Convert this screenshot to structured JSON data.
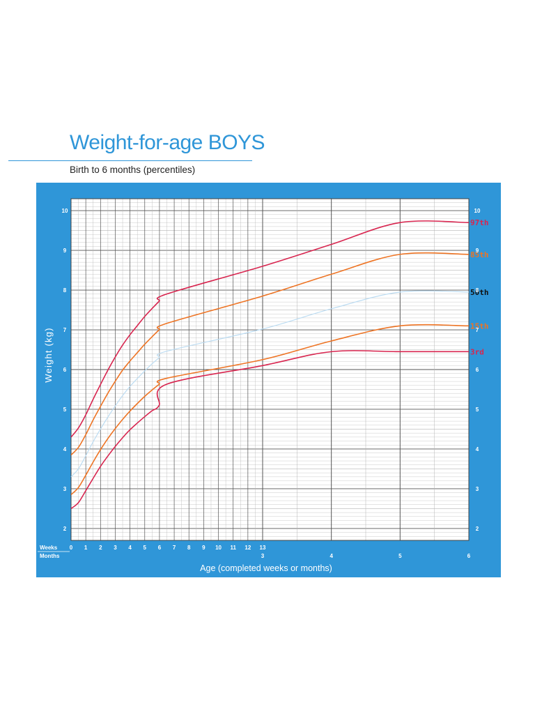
{
  "header": {
    "title": "Weight-for-age BOYS",
    "subtitle": "Birth to 6 months (percentiles)"
  },
  "colors": {
    "title": "#2f96d8",
    "panel": "#2f96d8",
    "red": "#d8254f",
    "orange": "#ee7424",
    "median": "#bcdcf2",
    "grid_major": "#555555",
    "grid_minor": "#b5b5b5"
  },
  "chart_data": {
    "type": "line",
    "title": "Weight-for-age BOYS",
    "subtitle": "Birth to 6 months (percentiles)",
    "xlabel": "Age (completed weeks or months)",
    "ylabel": "Weight (kg)",
    "x_unit": "months",
    "xlim": [
      0,
      6
    ],
    "ylim": [
      1.7,
      10.3
    ],
    "week_row_label": "Weeks",
    "month_row_label": "Months",
    "week_ticks": [
      "0",
      "1",
      "2",
      "3",
      "4",
      "5",
      "6",
      "7",
      "8",
      "9",
      "10",
      "11",
      "12",
      "13"
    ],
    "month_ticks": [
      "3",
      "4",
      "5",
      "6"
    ],
    "y_ticks": [
      "2",
      "3",
      "4",
      "5",
      "6",
      "7",
      "8",
      "9",
      "10"
    ],
    "grid": true,
    "series": [
      {
        "name": "97th",
        "color": "red",
        "x": [
          0,
          0.115,
          0.23,
          0.345,
          0.46,
          0.575,
          0.69,
          0.805,
          0.92,
          1.035,
          1.15,
          1.265,
          1.38,
          1.495,
          3,
          4,
          5,
          6
        ],
        "y": [
          4.3,
          4.53,
          4.86,
          5.25,
          5.62,
          5.98,
          6.31,
          6.61,
          6.87,
          7.1,
          7.33,
          7.53,
          7.72,
          7.9,
          8.6,
          9.15,
          9.7,
          9.7
        ]
      },
      {
        "name": "85th",
        "color": "orange",
        "x": [
          0,
          0.115,
          0.23,
          0.345,
          0.46,
          0.575,
          0.69,
          0.805,
          0.92,
          1.035,
          1.15,
          1.265,
          1.38,
          1.495,
          3,
          4,
          5,
          6
        ],
        "y": [
          3.85,
          4.04,
          4.36,
          4.73,
          5.07,
          5.4,
          5.7,
          5.98,
          6.21,
          6.42,
          6.63,
          6.82,
          7.0,
          7.16,
          7.85,
          8.4,
          8.9,
          8.9
        ]
      },
      {
        "name": "50th",
        "color": "median",
        "x": [
          0,
          0.115,
          0.23,
          0.345,
          0.46,
          0.575,
          0.69,
          0.805,
          0.92,
          1.035,
          1.15,
          1.265,
          1.38,
          1.495,
          3,
          4,
          5,
          6
        ],
        "y": [
          3.3,
          3.5,
          3.83,
          4.18,
          4.5,
          4.8,
          5.08,
          5.34,
          5.57,
          5.77,
          5.96,
          6.14,
          6.3,
          6.46,
          7.02,
          7.53,
          7.95,
          7.95
        ]
      },
      {
        "name": "15th",
        "color": "orange",
        "x": [
          0,
          0.115,
          0.23,
          0.345,
          0.46,
          0.575,
          0.69,
          0.805,
          0.92,
          1.035,
          1.15,
          1.265,
          1.38,
          1.495,
          3,
          4,
          5,
          6
        ],
        "y": [
          2.85,
          3.03,
          3.34,
          3.67,
          3.98,
          4.26,
          4.51,
          4.74,
          4.95,
          5.14,
          5.32,
          5.48,
          5.63,
          5.78,
          6.25,
          6.72,
          7.1,
          7.1
        ]
      },
      {
        "name": "3rd",
        "color": "red",
        "x": [
          0,
          0.115,
          0.23,
          0.345,
          0.46,
          0.575,
          0.69,
          0.805,
          0.92,
          1.035,
          1.15,
          1.265,
          1.38,
          1.495,
          3,
          4,
          5,
          6
        ],
        "y": [
          2.5,
          2.65,
          2.95,
          3.26,
          3.56,
          3.82,
          4.06,
          4.28,
          4.48,
          4.65,
          4.81,
          4.96,
          5.1,
          5.63,
          6.1,
          6.45,
          6.45,
          6.45
        ]
      }
    ]
  }
}
